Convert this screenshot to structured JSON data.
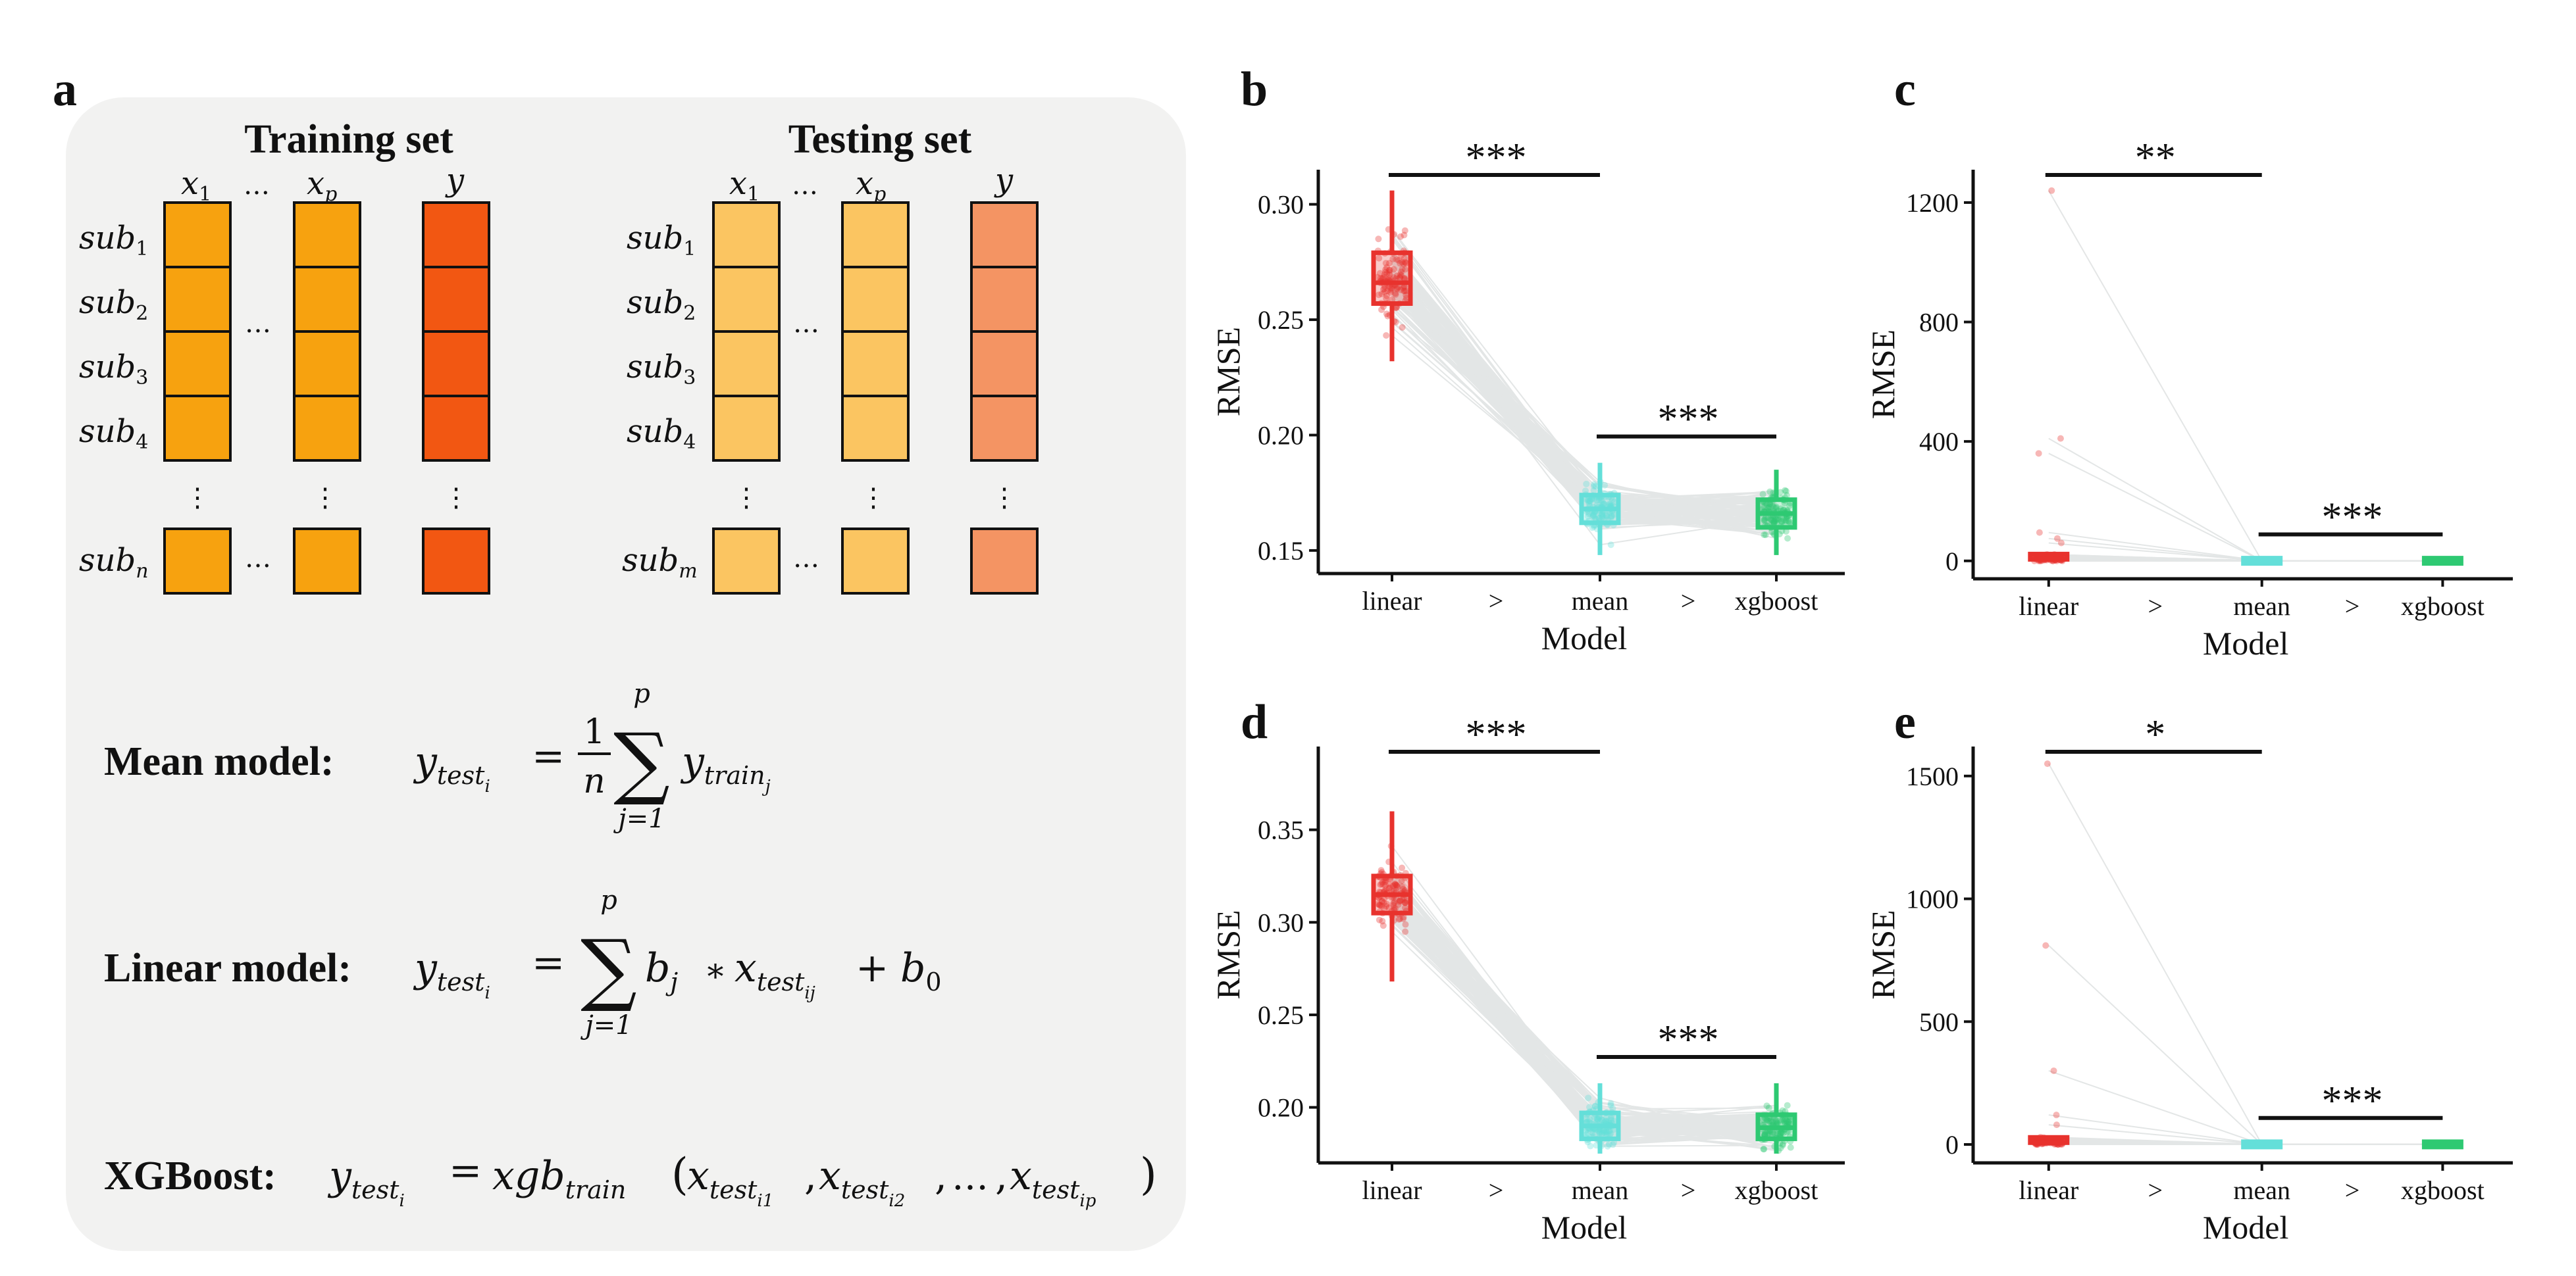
{
  "panel_a": {
    "letter": "a",
    "training_title": "Training set",
    "testing_title": "Testing set",
    "col_labels": [
      "x",
      "1",
      "…",
      "x",
      "p",
      "y"
    ],
    "train_rows": [
      "sub",
      "1",
      "sub",
      "2",
      "sub",
      "3",
      "sub",
      "4",
      "sub",
      "n"
    ],
    "test_rows": [
      "sub",
      "1",
      "sub",
      "2",
      "sub",
      "3",
      "sub",
      "4",
      "sub",
      "m"
    ],
    "ellipsis_h": "…",
    "ellipsis_v": "⋮",
    "colors": {
      "train_x": "#f7a20f",
      "train_y": "#f25712",
      "test_x": "#fbc561",
      "test_y": "#f49463",
      "box_bg": "#f2f2f1"
    },
    "mean_model": {
      "label": "Mean model:",
      "lhs": "y",
      "lhs_sub": "test",
      "lhs_subsub": "i",
      "eq": "=",
      "frac_num": "1",
      "frac_den": "n",
      "sigma": "∑",
      "sum_top": "p",
      "sum_bottom": "j=1",
      "term": "y",
      "term_sub": "train",
      "term_subsub": "j"
    },
    "linear_model": {
      "label": "Linear model:",
      "lhs": "y",
      "lhs_sub": "test",
      "lhs_subsub": "i",
      "eq": "=",
      "sigma": "∑",
      "sum_top": "p",
      "sum_bottom": "j=1",
      "b": "b",
      "b_sub": "j",
      "times": "∗",
      "x": "x",
      "x_sub": "test",
      "x_subsub": "ij",
      "plus": "+",
      "b0": "b",
      "b0_sub": "0"
    },
    "xgboost_model": {
      "label": "XGBoost:",
      "lhs": "y",
      "lhs_sub": "test",
      "lhs_subsub": "i",
      "eq": "=",
      "fn": "xgb",
      "fn_sub": "train",
      "open": "(",
      "x": "x",
      "x_sub": "test",
      "sub1": "i1",
      "sub2": "i2",
      "subp": "ip",
      "comma": ",",
      "ellipsis": "…",
      "close": ")"
    }
  },
  "charts": {
    "x_title": "Model",
    "y_title": "RMSE",
    "categories": [
      "linear",
      "mean",
      "xgboost"
    ],
    "order_symbol": ">",
    "colors": {
      "linear": "#e8322d",
      "mean": "#64dfd9",
      "xgboost": "#2ec972",
      "lines": "#c3c8c8"
    }
  },
  "chart_data": [
    {
      "panel": "b",
      "type": "box",
      "categories": [
        "linear",
        "mean",
        "xgboost"
      ],
      "ylabel": "RMSE",
      "xlabel": "Model",
      "ylim": [
        0.14,
        0.315
      ],
      "yticks": [
        "0.15",
        "0.20",
        "0.25",
        "0.30"
      ],
      "boxes": [
        {
          "name": "linear",
          "min": 0.232,
          "q1": 0.257,
          "median": 0.266,
          "q3": 0.279,
          "max": 0.306
        },
        {
          "name": "mean",
          "min": 0.148,
          "q1": 0.162,
          "median": 0.168,
          "q3": 0.174,
          "max": 0.188
        },
        {
          "name": "xgboost",
          "min": 0.148,
          "q1": 0.16,
          "median": 0.166,
          "q3": 0.172,
          "max": 0.185
        }
      ],
      "significance": [
        {
          "pair": [
            "linear",
            "mean"
          ],
          "label": "***"
        },
        {
          "pair": [
            "mean",
            "xgboost"
          ],
          "label": "***"
        }
      ]
    },
    {
      "panel": "c",
      "type": "box",
      "categories": [
        "linear",
        "mean",
        "xgboost"
      ],
      "ylabel": "RMSE",
      "xlabel": "Model",
      "ylim": [
        -60,
        1310
      ],
      "yticks": [
        "0",
        "400",
        "800",
        "1200"
      ],
      "outliers_linear": [
        1240,
        410,
        360,
        95,
        75,
        60
      ],
      "boxes": [
        {
          "name": "linear",
          "min": 0,
          "q1": 2,
          "median": 6,
          "q3": 14,
          "max": 30
        },
        {
          "name": "mean",
          "min": 0,
          "q1": 0.1,
          "median": 0.2,
          "q3": 0.3,
          "max": 0.5
        },
        {
          "name": "xgboost",
          "min": 0,
          "q1": 0.1,
          "median": 0.2,
          "q3": 0.3,
          "max": 0.5
        }
      ],
      "significance": [
        {
          "pair": [
            "linear",
            "mean"
          ],
          "label": "**"
        },
        {
          "pair": [
            "mean",
            "xgboost"
          ],
          "label": "***"
        }
      ]
    },
    {
      "panel": "d",
      "type": "box",
      "categories": [
        "linear",
        "mean",
        "xgboost"
      ],
      "ylabel": "RMSE",
      "xlabel": "Model",
      "ylim": [
        0.17,
        0.395
      ],
      "yticks": [
        "0.20",
        "0.25",
        "0.30",
        "0.35"
      ],
      "boxes": [
        {
          "name": "linear",
          "min": 0.268,
          "q1": 0.305,
          "median": 0.315,
          "q3": 0.325,
          "max": 0.36
        },
        {
          "name": "mean",
          "min": 0.175,
          "q1": 0.183,
          "median": 0.19,
          "q3": 0.197,
          "max": 0.213
        },
        {
          "name": "xgboost",
          "min": 0.175,
          "q1": 0.183,
          "median": 0.189,
          "q3": 0.196,
          "max": 0.213
        }
      ],
      "significance": [
        {
          "pair": [
            "linear",
            "mean"
          ],
          "label": "***"
        },
        {
          "pair": [
            "mean",
            "xgboost"
          ],
          "label": "***"
        }
      ]
    },
    {
      "panel": "e",
      "type": "box",
      "categories": [
        "linear",
        "mean",
        "xgboost"
      ],
      "ylabel": "RMSE",
      "xlabel": "Model",
      "ylim": [
        -75,
        1620
      ],
      "yticks": [
        "0",
        "500",
        "1000",
        "1500"
      ],
      "outliers_linear": [
        1550,
        810,
        300,
        120,
        80
      ],
      "boxes": [
        {
          "name": "linear",
          "min": 0,
          "q1": 3,
          "median": 8,
          "q3": 18,
          "max": 35
        },
        {
          "name": "mean",
          "min": 0,
          "q1": 0.1,
          "median": 0.2,
          "q3": 0.3,
          "max": 0.5
        },
        {
          "name": "xgboost",
          "min": 0,
          "q1": 0.1,
          "median": 0.2,
          "q3": 0.3,
          "max": 0.5
        }
      ],
      "significance": [
        {
          "pair": [
            "linear",
            "mean"
          ],
          "label": "*"
        },
        {
          "pair": [
            "mean",
            "xgboost"
          ],
          "label": "***"
        }
      ]
    }
  ]
}
